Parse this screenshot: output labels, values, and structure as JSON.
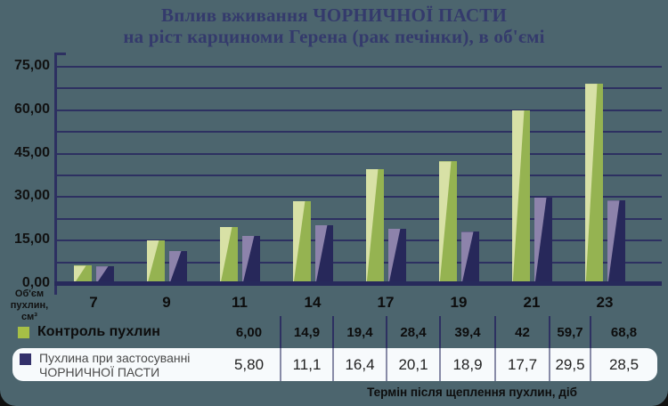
{
  "title": {
    "line1": "Вплив вживання ЧОРНИЧНОЇ ПАСТИ",
    "line2": "на ріст карциноми Герена (рак печінки), в об'ємі"
  },
  "legend": {
    "row1_label": "Контроль пухлин",
    "row2_line1": "Пухлина при застосуванні",
    "row2_line2": "ЧОРНИЧНОЇ ПАСТИ"
  },
  "colors": {
    "background": "#4c656e",
    "grid": "#2d3061",
    "title_text": "#343a6c",
    "table_row_bg": "#f7fafc",
    "control_swatch": "#a6bf46",
    "paste_swatch": "#33306a"
  },
  "chart_data": {
    "type": "bar",
    "title": "Вплив вживання ЧОРНИЧНОЇ ПАСТИ на ріст карциноми Герена (рак печінки), в об'ємі",
    "categories": [
      "7",
      "9",
      "11",
      "14",
      "17",
      "19",
      "21",
      "23"
    ],
    "series": [
      {
        "name": "Контроль пухлин",
        "values": [
          6.0,
          14.9,
          19.4,
          28.4,
          39.4,
          42,
          59.7,
          68.8
        ],
        "labels": [
          "6,00",
          "14,9",
          "19,4",
          "28,4",
          "39,4",
          "42",
          "59,7",
          "68,8"
        ],
        "color_light": "#d8e1a6",
        "color_dark": "#95b351",
        "swatch": "#a6bf46"
      },
      {
        "name": "Пухлина при застосуванні ЧОРНИЧНОЇ ПАСТИ",
        "values": [
          5.8,
          11.1,
          16.4,
          20.1,
          18.9,
          17.7,
          29.5,
          28.5
        ],
        "labels": [
          "5,80",
          "11,1",
          "16,4",
          "20,1",
          "18,9",
          "17,7",
          "29,5",
          "28,5"
        ],
        "color_light": "#8d83ab",
        "color_dark": "#27285a",
        "swatch": "#33306a"
      }
    ],
    "ylim": [
      0,
      75
    ],
    "grid_step": 7.5,
    "y_ticks": [
      "75,00",
      "60,00",
      "45,00",
      "30,00",
      "15,00",
      "0,00"
    ],
    "ylabel": "Об'єм\nпухлин,\nсм³",
    "xlabel": "Термін після щеплення пухлин, діб",
    "grid": true,
    "legend_position": "bottom-table"
  }
}
